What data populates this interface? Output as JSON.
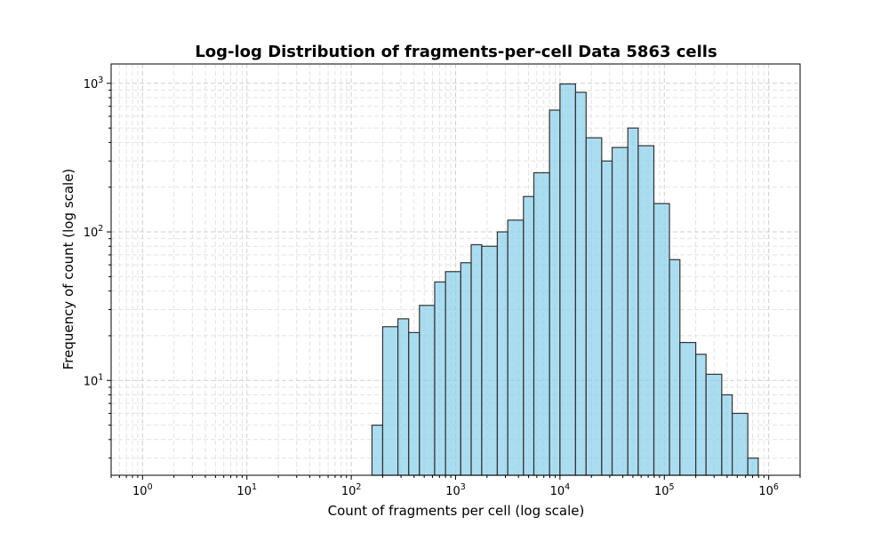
{
  "chart_data": {
    "type": "bar",
    "title": "Log-log Distribution of fragments-per-cell Data 5863 cells",
    "xlabel": "Count of fragments per cell (log scale)",
    "ylabel": "Frequency of count (log scale)",
    "xscale": "log",
    "yscale": "log",
    "xlim": [
      0.5,
      2000000
    ],
    "ylim": [
      2.3,
      1350
    ],
    "grid": true,
    "grid_style": "dashed",
    "bar_color": "#87CEEB",
    "bar_edge_color": "#333333",
    "x_ticks": [
      {
        "base": "10",
        "exp": "0"
      },
      {
        "base": "10",
        "exp": "1"
      },
      {
        "base": "10",
        "exp": "2"
      },
      {
        "base": "10",
        "exp": "3"
      },
      {
        "base": "10",
        "exp": "4"
      },
      {
        "base": "10",
        "exp": "5"
      },
      {
        "base": "10",
        "exp": "6"
      }
    ],
    "y_ticks": [
      {
        "base": "10",
        "exp": "1"
      },
      {
        "base": "10",
        "exp": "2"
      },
      {
        "base": "10",
        "exp": "3"
      }
    ],
    "bins": [
      {
        "x0": 158,
        "x1": 200,
        "count": 5
      },
      {
        "x0": 200,
        "x1": 280,
        "count": 23
      },
      {
        "x0": 280,
        "x1": 355,
        "count": 26
      },
      {
        "x0": 355,
        "x1": 450,
        "count": 21
      },
      {
        "x0": 450,
        "x1": 630,
        "count": 32
      },
      {
        "x0": 630,
        "x1": 800,
        "count": 46
      },
      {
        "x0": 800,
        "x1": 1120,
        "count": 54
      },
      {
        "x0": 1120,
        "x1": 1410,
        "count": 62
      },
      {
        "x0": 1410,
        "x1": 1780,
        "count": 82
      },
      {
        "x0": 1780,
        "x1": 2510,
        "count": 80
      },
      {
        "x0": 2510,
        "x1": 3160,
        "count": 100
      },
      {
        "x0": 3160,
        "x1": 4470,
        "count": 120
      },
      {
        "x0": 4470,
        "x1": 5620,
        "count": 173
      },
      {
        "x0": 5620,
        "x1": 7940,
        "count": 250
      },
      {
        "x0": 7940,
        "x1": 10000,
        "count": 660
      },
      {
        "x0": 10000,
        "x1": 14100,
        "count": 990
      },
      {
        "x0": 14100,
        "x1": 17800,
        "count": 870
      },
      {
        "x0": 17800,
        "x1": 25100,
        "count": 430
      },
      {
        "x0": 25100,
        "x1": 31600,
        "count": 300
      },
      {
        "x0": 31600,
        "x1": 44700,
        "count": 370
      },
      {
        "x0": 44700,
        "x1": 56200,
        "count": 500
      },
      {
        "x0": 56200,
        "x1": 79400,
        "count": 380
      },
      {
        "x0": 79400,
        "x1": 112000,
        "count": 155
      },
      {
        "x0": 112000,
        "x1": 141000,
        "count": 65
      },
      {
        "x0": 141000,
        "x1": 200000,
        "count": 18
      },
      {
        "x0": 200000,
        "x1": 251000,
        "count": 15
      },
      {
        "x0": 251000,
        "x1": 355000,
        "count": 11
      },
      {
        "x0": 355000,
        "x1": 447000,
        "count": 8
      },
      {
        "x0": 447000,
        "x1": 631000,
        "count": 6
      },
      {
        "x0": 631000,
        "x1": 794000,
        "count": 3
      }
    ]
  }
}
